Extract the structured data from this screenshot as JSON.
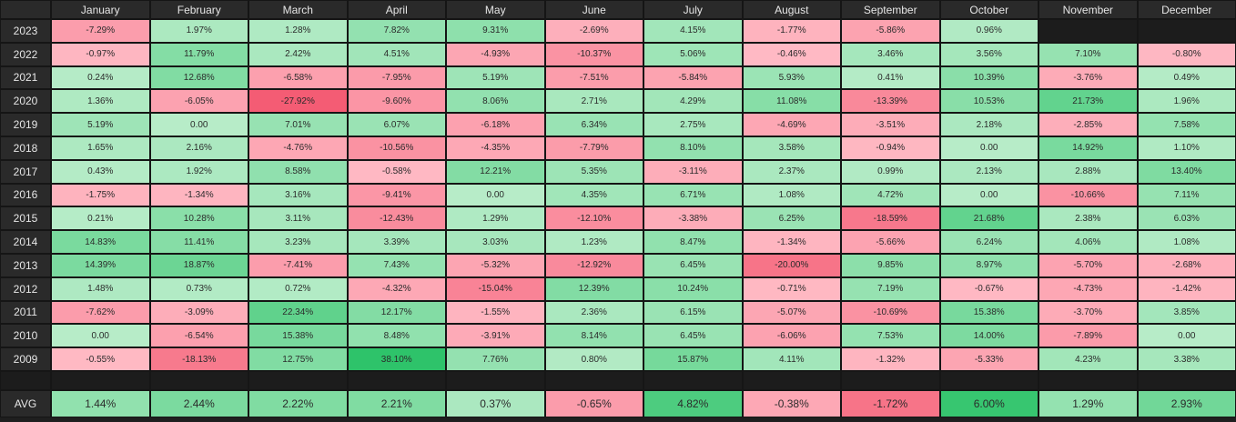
{
  "table": {
    "months": [
      "January",
      "February",
      "March",
      "April",
      "May",
      "June",
      "July",
      "August",
      "September",
      "October",
      "November",
      "December"
    ],
    "rows": [
      {
        "year": "2023",
        "values": [
          "-7.29%",
          "1.97%",
          "1.28%",
          "7.82%",
          "9.31%",
          "-2.69%",
          "4.15%",
          "-1.77%",
          "-5.86%",
          "0.96%",
          "",
          ""
        ]
      },
      {
        "year": "2022",
        "values": [
          "-0.97%",
          "11.79%",
          "2.42%",
          "4.51%",
          "-4.93%",
          "-10.37%",
          "5.06%",
          "-0.46%",
          "3.46%",
          "3.56%",
          "7.10%",
          "-0.80%"
        ]
      },
      {
        "year": "2021",
        "values": [
          "0.24%",
          "12.68%",
          "-6.58%",
          "-7.95%",
          "5.19%",
          "-7.51%",
          "-5.84%",
          "5.93%",
          "0.41%",
          "10.39%",
          "-3.76%",
          "0.49%"
        ]
      },
      {
        "year": "2020",
        "values": [
          "1.36%",
          "-6.05%",
          "-27.92%",
          "-9.60%",
          "8.06%",
          "2.71%",
          "4.29%",
          "11.08%",
          "-13.39%",
          "10.53%",
          "21.73%",
          "1.96%"
        ]
      },
      {
        "year": "2019",
        "values": [
          "5.19%",
          "0.00",
          "7.01%",
          "6.07%",
          "-6.18%",
          "6.34%",
          "2.75%",
          "-4.69%",
          "-3.51%",
          "2.18%",
          "-2.85%",
          "7.58%"
        ]
      },
      {
        "year": "2018",
        "values": [
          "1.65%",
          "2.16%",
          "-4.76%",
          "-10.56%",
          "-4.35%",
          "-7.79%",
          "8.10%",
          "3.58%",
          "-0.94%",
          "0.00",
          "14.92%",
          "1.10%"
        ]
      },
      {
        "year": "2017",
        "values": [
          "0.43%",
          "1.92%",
          "8.58%",
          "-0.58%",
          "12.21%",
          "5.35%",
          "-3.11%",
          "2.37%",
          "0.99%",
          "2.13%",
          "2.88%",
          "13.40%"
        ]
      },
      {
        "year": "2016",
        "values": [
          "-1.75%",
          "-1.34%",
          "3.16%",
          "-9.41%",
          "0.00",
          "4.35%",
          "6.71%",
          "1.08%",
          "4.72%",
          "0.00",
          "-10.66%",
          "7.11%"
        ]
      },
      {
        "year": "2015",
        "values": [
          "0.21%",
          "10.28%",
          "3.11%",
          "-12.43%",
          "1.29%",
          "-12.10%",
          "-3.38%",
          "6.25%",
          "-18.59%",
          "21.68%",
          "2.38%",
          "6.03%"
        ]
      },
      {
        "year": "2014",
        "values": [
          "14.83%",
          "11.41%",
          "3.23%",
          "3.39%",
          "3.03%",
          "1.23%",
          "8.47%",
          "-1.34%",
          "-5.66%",
          "6.24%",
          "4.06%",
          "1.08%"
        ]
      },
      {
        "year": "2013",
        "values": [
          "14.39%",
          "18.87%",
          "-7.41%",
          "7.43%",
          "-5.32%",
          "-12.92%",
          "6.45%",
          "-20.00%",
          "9.85%",
          "8.97%",
          "-5.70%",
          "-2.68%"
        ]
      },
      {
        "year": "2012",
        "values": [
          "1.48%",
          "0.73%",
          "0.72%",
          "-4.32%",
          "-15.04%",
          "12.39%",
          "10.24%",
          "-0.71%",
          "7.19%",
          "-0.67%",
          "-4.73%",
          "-1.42%"
        ]
      },
      {
        "year": "2011",
        "values": [
          "-7.62%",
          "-3.09%",
          "22.34%",
          "12.17%",
          "-1.55%",
          "2.36%",
          "6.15%",
          "-5.07%",
          "-10.69%",
          "15.38%",
          "-3.70%",
          "3.85%"
        ]
      },
      {
        "year": "2010",
        "values": [
          "0.00",
          "-6.54%",
          "15.38%",
          "8.48%",
          "-3.91%",
          "8.14%",
          "6.45%",
          "-6.06%",
          "7.53%",
          "14.00%",
          "-7.89%",
          "0.00"
        ]
      },
      {
        "year": "2009",
        "values": [
          "-0.55%",
          "-18.13%",
          "12.75%",
          "38.10%",
          "7.76%",
          "0.80%",
          "15.87%",
          "4.11%",
          "-1.32%",
          "-5.33%",
          "4.23%",
          "3.38%"
        ]
      }
    ],
    "avg_label": "AVG",
    "avg_values": [
      "1.44%",
      "2.44%",
      "2.22%",
      "2.21%",
      "0.37%",
      "-0.65%",
      "4.82%",
      "-0.38%",
      "-1.72%",
      "6.00%",
      "1.29%",
      "2.93%"
    ],
    "colors": {
      "positive_light": "#b7ecc8",
      "positive_strong": "#2ec36a",
      "negative_light": "#ffbcc6",
      "negative_strong": "#f45c74",
      "header_bg": "#2a2a2a",
      "background": "#1f1f1f"
    }
  }
}
